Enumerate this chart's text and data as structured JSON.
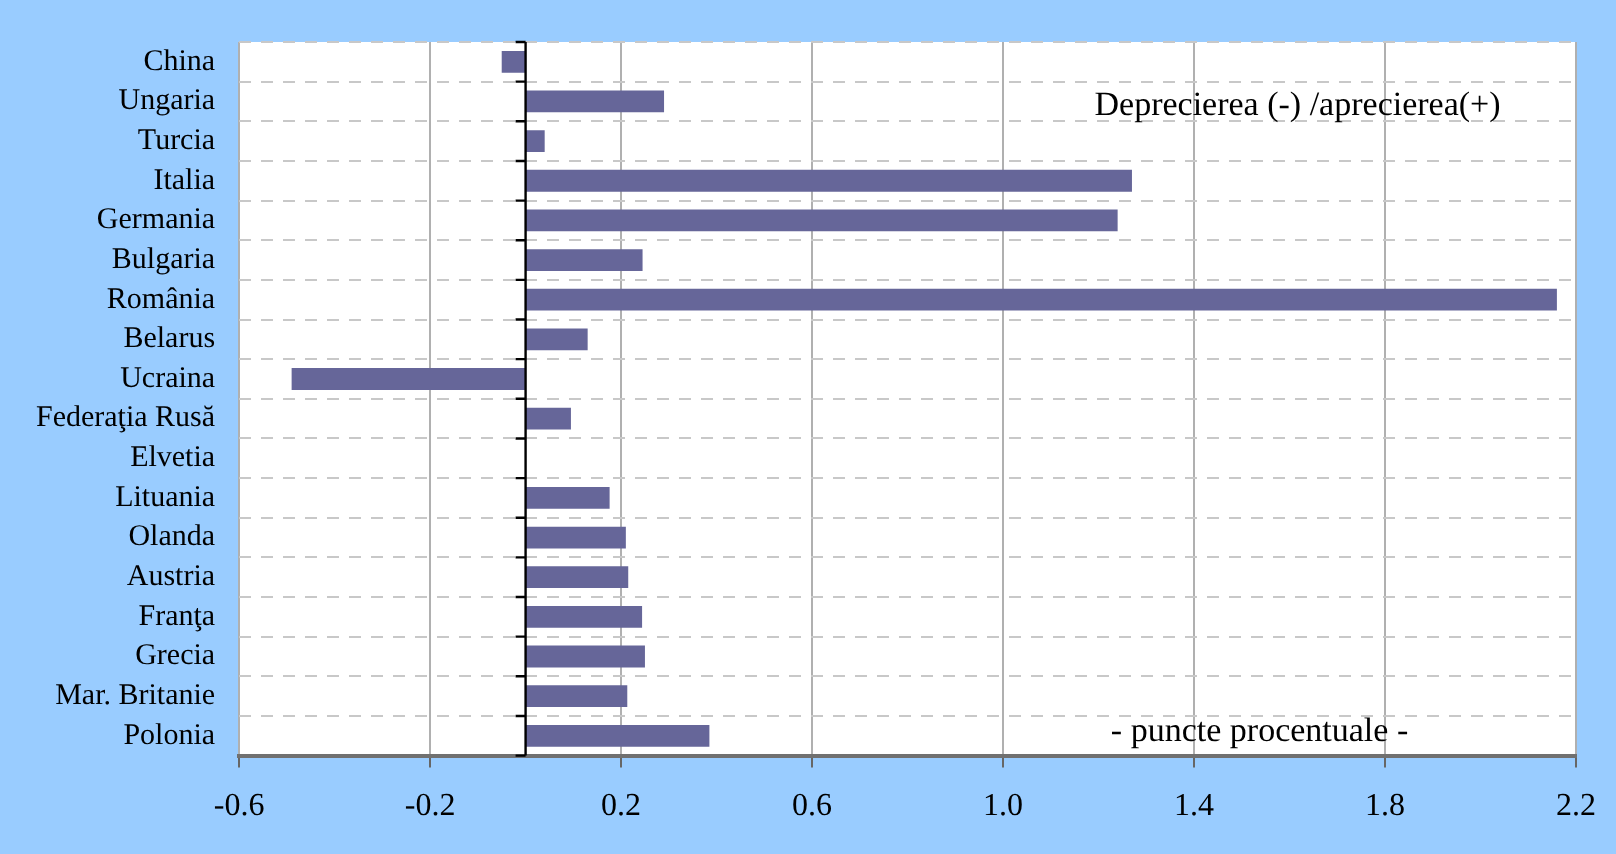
{
  "chart_data": {
    "type": "bar",
    "orientation": "horizontal",
    "categories": [
      "China",
      "Ungaria",
      "Turcia",
      "Italia",
      "Germania",
      "Bulgaria",
      "România",
      "Belarus",
      "Ucraina",
      "Federaţia Rusă",
      "Elvetia",
      "Lituania",
      "Olanda",
      "Austria",
      "Franţa",
      "Grecia",
      "Mar. Britanie",
      "Polonia"
    ],
    "values": [
      -0.05,
      0.29,
      0.04,
      1.27,
      1.24,
      0.245,
      2.16,
      0.13,
      -0.49,
      0.095,
      0,
      0.176,
      0.21,
      0.215,
      0.244,
      0.25,
      0.213,
      0.385
    ],
    "color": "#666699",
    "xlim": [
      -0.6,
      2.2
    ],
    "xticks": [
      {
        "value": -0.6,
        "label": "-0.6"
      },
      {
        "value": -0.2,
        "label": "-0.2"
      },
      {
        "value": 0.2,
        "label": "0.2"
      },
      {
        "value": 0.6,
        "label": "0.6"
      },
      {
        "value": 1.0,
        "label": "1.0"
      },
      {
        "value": 1.4,
        "label": "1.4"
      },
      {
        "value": 1.8,
        "label": "1.8"
      },
      {
        "value": 2.2,
        "label": "2.2"
      }
    ],
    "grid": true,
    "annotations": [
      "Deprecierea (-) /aprecierea(+)",
      "- puncte procentuale -"
    ]
  }
}
